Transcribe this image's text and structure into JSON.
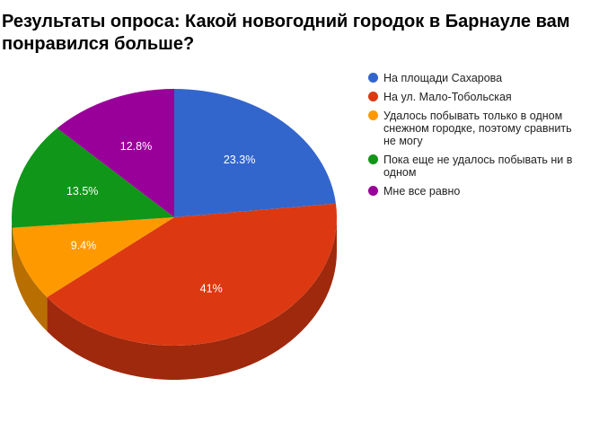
{
  "chart_data": {
    "type": "pie",
    "title": "Результаты опроса: Какой новогодний городок в Барнауле вам понравился больше?",
    "legend_position": "right",
    "three_d": true,
    "slices": [
      {
        "label": "На площади Сахарова",
        "value": 23.3,
        "value_label": "23.3%",
        "color": "#3366cc"
      },
      {
        "label": "На ул. Мало-Тобольская",
        "value": 41,
        "value_label": "41%",
        "color": "#dc3912"
      },
      {
        "label": "Удалось побывать только в одном снежном городке, поэтому сравнить не могу",
        "value": 9.4,
        "value_label": "9.4%",
        "color": "#ff9900"
      },
      {
        "label": "Пока еще не удалось побывать ни в одном",
        "value": 13.5,
        "value_label": "13.5%",
        "color": "#109618"
      },
      {
        "label": "Мне все равно",
        "value": 12.8,
        "value_label": "12.8%",
        "color": "#990099"
      }
    ]
  }
}
